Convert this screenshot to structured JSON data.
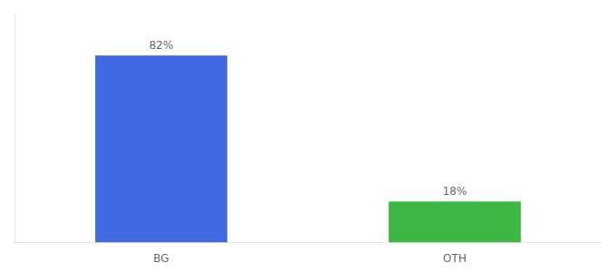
{
  "chart_data": {
    "type": "bar",
    "categories": [
      "BG",
      "OTH"
    ],
    "values": [
      82,
      18
    ],
    "value_labels": [
      "82%",
      "18%"
    ],
    "colors": [
      "#4169E1",
      "#3CB843"
    ],
    "ylim": [
      0,
      100
    ],
    "grid": false,
    "data_labels": true,
    "tick_labels": "x"
  }
}
